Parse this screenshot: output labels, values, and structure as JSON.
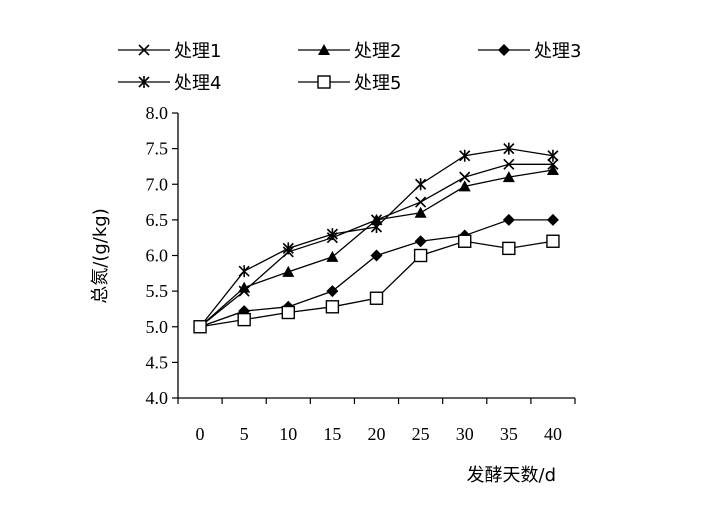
{
  "chart_data": {
    "type": "line",
    "title": "",
    "xlabel": "发酵天数/d",
    "ylabel": "总氮/(g/kg)",
    "x": [
      0,
      5,
      10,
      15,
      20,
      25,
      30,
      35,
      40
    ],
    "xlim": [
      -2.5,
      42.5
    ],
    "ylim": [
      4.0,
      8.0
    ],
    "y_ticks": [
      "4.0",
      "4.5",
      "5.0",
      "5.5",
      "6.0",
      "6.5",
      "7.0",
      "7.5",
      "8.0"
    ],
    "x_ticks": [
      "0",
      "5",
      "10",
      "15",
      "20",
      "25",
      "30",
      "35",
      "40"
    ],
    "grid": false,
    "legend_position": "top",
    "series": [
      {
        "name": "处理1",
        "marker": "x",
        "values": [
          5.0,
          5.5,
          6.05,
          6.25,
          6.5,
          6.75,
          7.1,
          7.28,
          7.28
        ]
      },
      {
        "name": "处理2",
        "marker": "triangle",
        "values": [
          5.0,
          5.55,
          5.77,
          5.98,
          6.5,
          6.6,
          6.97,
          7.1,
          7.2
        ]
      },
      {
        "name": "处理3",
        "marker": "diamond",
        "values": [
          5.0,
          5.22,
          5.28,
          5.5,
          6.0,
          6.2,
          6.28,
          6.5,
          6.5
        ]
      },
      {
        "name": "处理4",
        "marker": "asterisk",
        "values": [
          5.0,
          5.78,
          6.1,
          6.3,
          6.4,
          7.0,
          7.4,
          7.5,
          7.4
        ]
      },
      {
        "name": "处理5",
        "marker": "square",
        "values": [
          5.0,
          5.1,
          5.2,
          5.28,
          5.4,
          6.0,
          6.2,
          6.1,
          6.2
        ]
      }
    ]
  }
}
